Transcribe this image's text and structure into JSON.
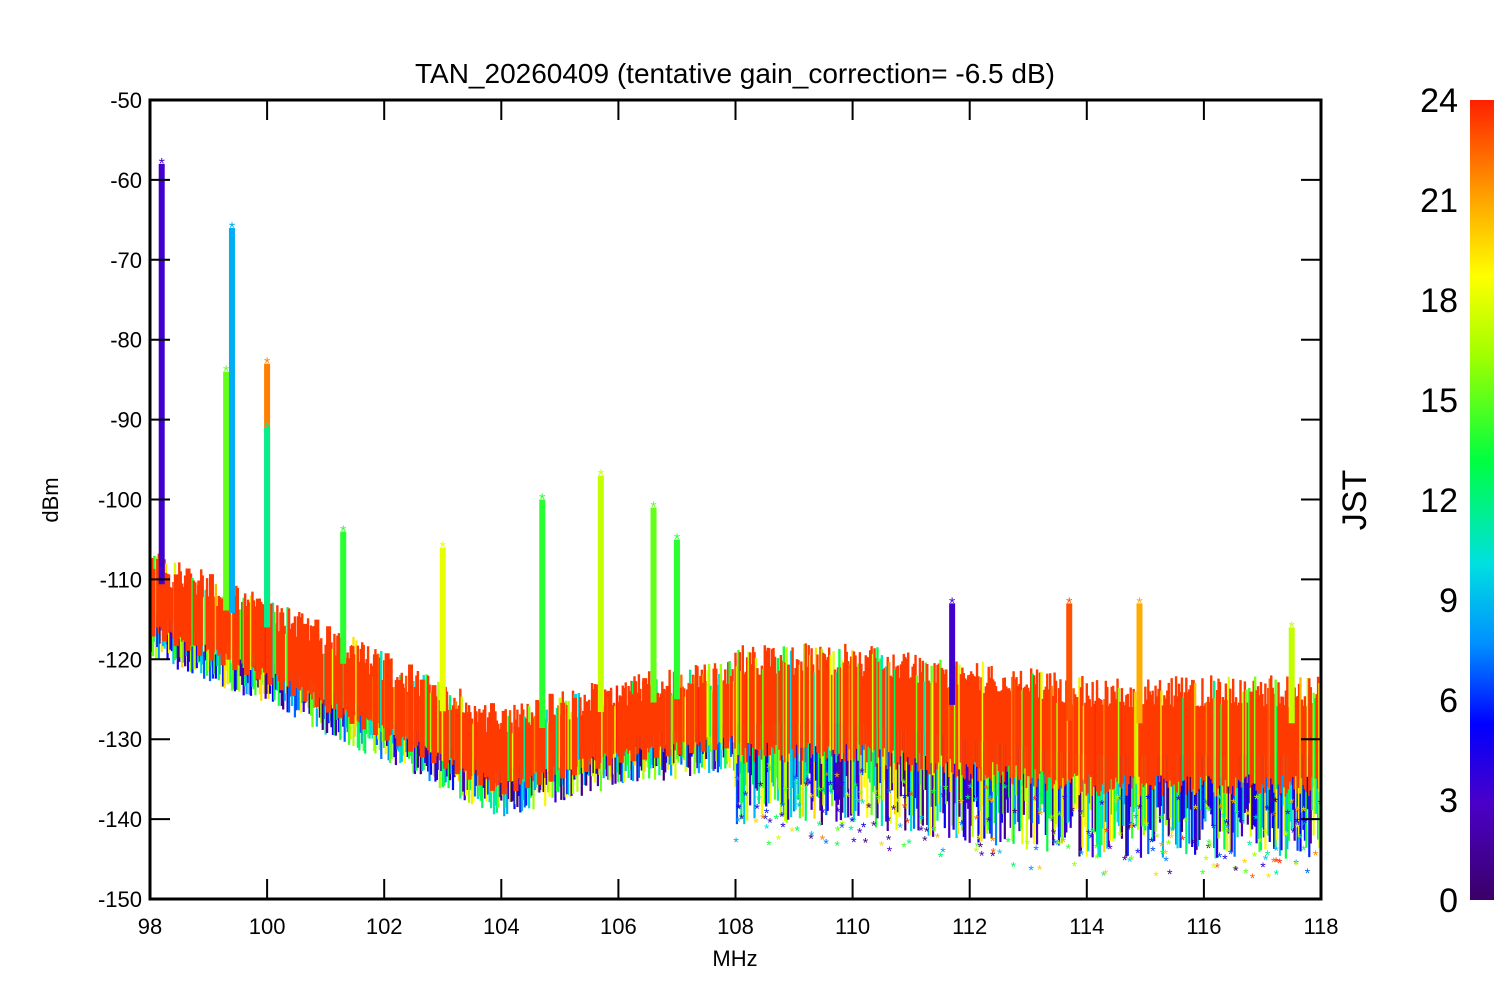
{
  "chart_data": {
    "type": "scatter",
    "title": "TAN_20260409 (tentative gain_correction= -6.5 dB)",
    "xlabel": "MHz",
    "ylabel": "dBm",
    "xlim": [
      98,
      118
    ],
    "ylim": [
      -150,
      -50
    ],
    "xticks": [
      98,
      100,
      102,
      104,
      106,
      108,
      110,
      112,
      114,
      116,
      118
    ],
    "yticks": [
      -150,
      -140,
      -130,
      -120,
      -110,
      -100,
      -90,
      -80,
      -70,
      -60,
      -50
    ],
    "colorbar": {
      "label": "JST",
      "range": [
        0,
        24
      ],
      "ticks": [
        0,
        3,
        6,
        9,
        12,
        15,
        18,
        21,
        24
      ],
      "colormap": [
        "#3b0068",
        "#4b00c8",
        "#0000ff",
        "#0090ff",
        "#00e0e0",
        "#00ff40",
        "#a0ff00",
        "#ffff00",
        "#ffa000",
        "#ff2000"
      ]
    },
    "noise_floor": [
      {
        "x": 98,
        "y": -114
      },
      {
        "x": 100,
        "y": -120
      },
      {
        "x": 102,
        "y": -127
      },
      {
        "x": 104,
        "y": -134
      },
      {
        "x": 106,
        "y": -130
      },
      {
        "x": 108,
        "y": -128
      },
      {
        "x": 110,
        "y": -128
      },
      {
        "x": 112,
        "y": -130
      },
      {
        "x": 114,
        "y": -132
      },
      {
        "x": 116,
        "y": -132
      },
      {
        "x": 118,
        "y": -132
      }
    ],
    "peaks": [
      {
        "x": 98.2,
        "y": -58,
        "jst": 3
      },
      {
        "x": 99.3,
        "y": -84,
        "jst": 15
      },
      {
        "x": 99.4,
        "y": -66,
        "jst": 9
      },
      {
        "x": 100.0,
        "y": -83,
        "jst": 22
      },
      {
        "x": 100.0,
        "y": -91,
        "jst": 12
      },
      {
        "x": 101.3,
        "y": -104,
        "jst": 14
      },
      {
        "x": 103.0,
        "y": -106,
        "jst": 18
      },
      {
        "x": 104.7,
        "y": -100,
        "jst": 14
      },
      {
        "x": 105.7,
        "y": -97,
        "jst": 17
      },
      {
        "x": 106.6,
        "y": -101,
        "jst": 15
      },
      {
        "x": 107.0,
        "y": -105,
        "jst": 14
      },
      {
        "x": 111.7,
        "y": -113,
        "jst": 3
      },
      {
        "x": 113.7,
        "y": -113,
        "jst": 23
      },
      {
        "x": 114.9,
        "y": -113,
        "jst": 21
      },
      {
        "x": 117.5,
        "y": -116,
        "jst": 17
      }
    ]
  }
}
